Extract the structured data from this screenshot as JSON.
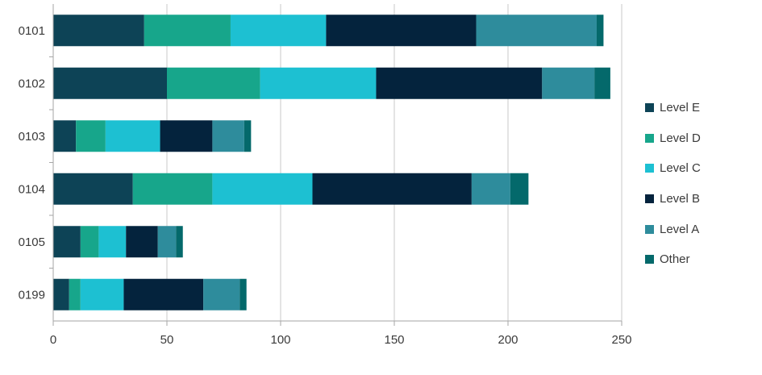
{
  "chart_data": {
    "type": "bar",
    "orientation": "horizontal",
    "stacked": true,
    "title": "",
    "xlabel": "",
    "ylabel": "",
    "xlim": [
      0,
      250
    ],
    "xticks": [
      0,
      50,
      100,
      150,
      200,
      250
    ],
    "xtick_labels": [
      "0",
      "50",
      "100",
      "150",
      "200",
      "250"
    ],
    "grid": "vertical",
    "legend_position": "right",
    "categories": [
      "0101",
      "0102",
      "0103",
      "0104",
      "0105",
      "0199"
    ],
    "series": [
      {
        "name": "Level E",
        "color": "#0d4356",
        "values": [
          40,
          50,
          10,
          35,
          12,
          7
        ]
      },
      {
        "name": "Level D",
        "color": "#17a68b",
        "values": [
          38,
          41,
          13,
          35,
          8,
          5
        ]
      },
      {
        "name": "Level C",
        "color": "#1dc0d2",
        "values": [
          42,
          51,
          24,
          44,
          12,
          19
        ]
      },
      {
        "name": "Level B",
        "color": "#04233d",
        "values": [
          66,
          73,
          23,
          70,
          14,
          35
        ]
      },
      {
        "name": "Level A",
        "color": "#2e8c9c",
        "values": [
          53,
          23,
          14,
          17,
          8,
          16
        ]
      },
      {
        "name": "Other",
        "color": "#04696b",
        "values": [
          3,
          7,
          3,
          8,
          3,
          3
        ]
      }
    ]
  }
}
